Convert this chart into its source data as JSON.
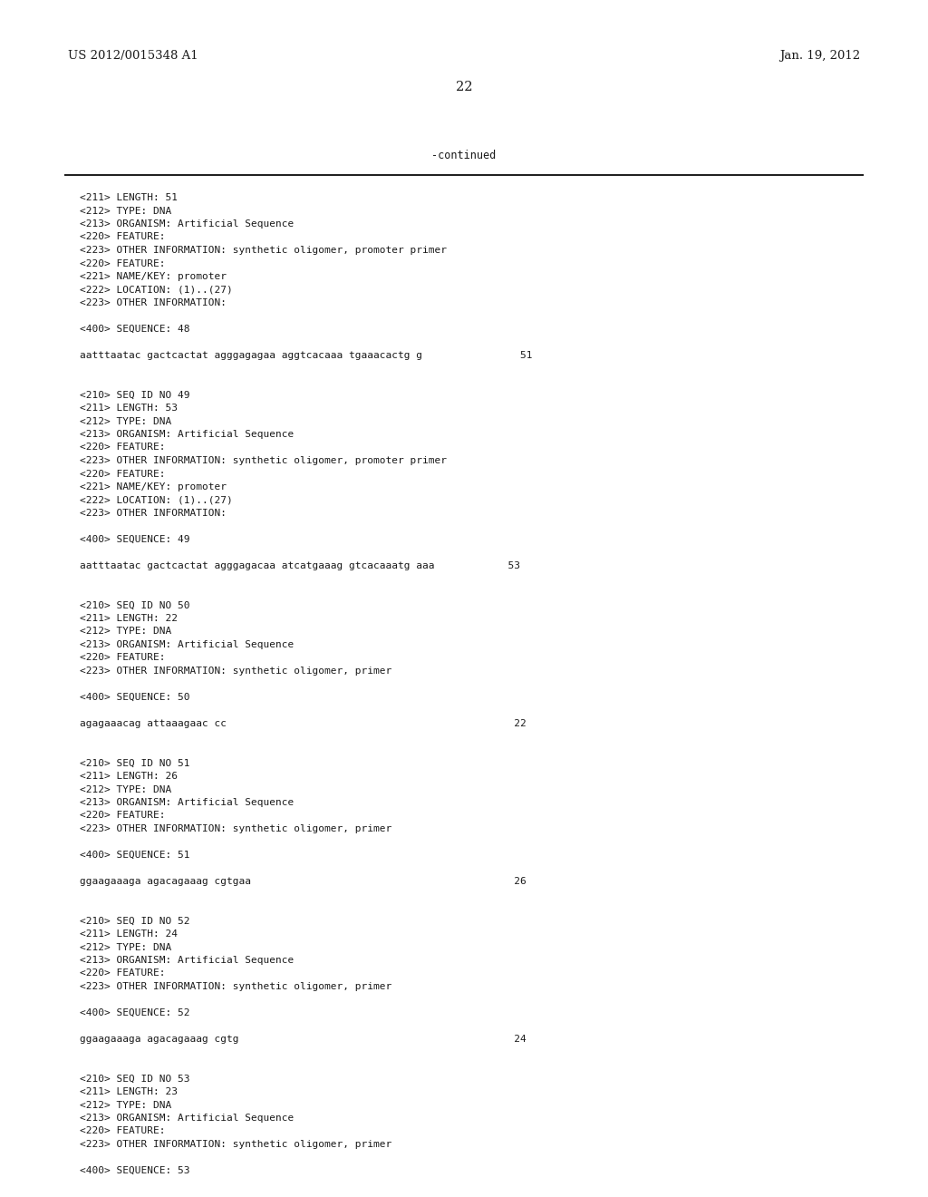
{
  "background_color": "#ffffff",
  "header_left": "US 2012/0015348 A1",
  "header_right": "Jan. 19, 2012",
  "page_number": "22",
  "continued_text": "-continued",
  "mono_font_size": 8.0,
  "header_font_size": 9.5,
  "page_num_font_size": 10.5,
  "content_lines": [
    "<211> LENGTH: 51",
    "<212> TYPE: DNA",
    "<213> ORGANISM: Artificial Sequence",
    "<220> FEATURE:",
    "<223> OTHER INFORMATION: synthetic oligomer, promoter primer",
    "<220> FEATURE:",
    "<221> NAME/KEY: promoter",
    "<222> LOCATION: (1)..(27)",
    "<223> OTHER INFORMATION:",
    "",
    "<400> SEQUENCE: 48",
    "",
    "aatttaatac gactcactat agggagagaa aggtcacaaa tgaaacactg g                51",
    "",
    "",
    "<210> SEQ ID NO 49",
    "<211> LENGTH: 53",
    "<212> TYPE: DNA",
    "<213> ORGANISM: Artificial Sequence",
    "<220> FEATURE:",
    "<223> OTHER INFORMATION: synthetic oligomer, promoter primer",
    "<220> FEATURE:",
    "<221> NAME/KEY: promoter",
    "<222> LOCATION: (1)..(27)",
    "<223> OTHER INFORMATION:",
    "",
    "<400> SEQUENCE: 49",
    "",
    "aatttaatac gactcactat agggagacaa atcatgaaag gtcacaaatg aaa            53",
    "",
    "",
    "<210> SEQ ID NO 50",
    "<211> LENGTH: 22",
    "<212> TYPE: DNA",
    "<213> ORGANISM: Artificial Sequence",
    "<220> FEATURE:",
    "<223> OTHER INFORMATION: synthetic oligomer, primer",
    "",
    "<400> SEQUENCE: 50",
    "",
    "agagaaacag attaaagaac cc                                               22",
    "",
    "",
    "<210> SEQ ID NO 51",
    "<211> LENGTH: 26",
    "<212> TYPE: DNA",
    "<213> ORGANISM: Artificial Sequence",
    "<220> FEATURE:",
    "<223> OTHER INFORMATION: synthetic oligomer, primer",
    "",
    "<400> SEQUENCE: 51",
    "",
    "ggaagaaaga agacagaaag cgtgaa                                           26",
    "",
    "",
    "<210> SEQ ID NO 52",
    "<211> LENGTH: 24",
    "<212> TYPE: DNA",
    "<213> ORGANISM: Artificial Sequence",
    "<220> FEATURE:",
    "<223> OTHER INFORMATION: synthetic oligomer, primer",
    "",
    "<400> SEQUENCE: 52",
    "",
    "ggaagaaaga agacagaaag cgtg                                             24",
    "",
    "",
    "<210> SEQ ID NO 53",
    "<211> LENGTH: 23",
    "<212> TYPE: DNA",
    "<213> ORGANISM: Artificial Sequence",
    "<220> FEATURE:",
    "<223> OTHER INFORMATION: synthetic oligomer, primer",
    "",
    "<400> SEQUENCE: 53"
  ]
}
